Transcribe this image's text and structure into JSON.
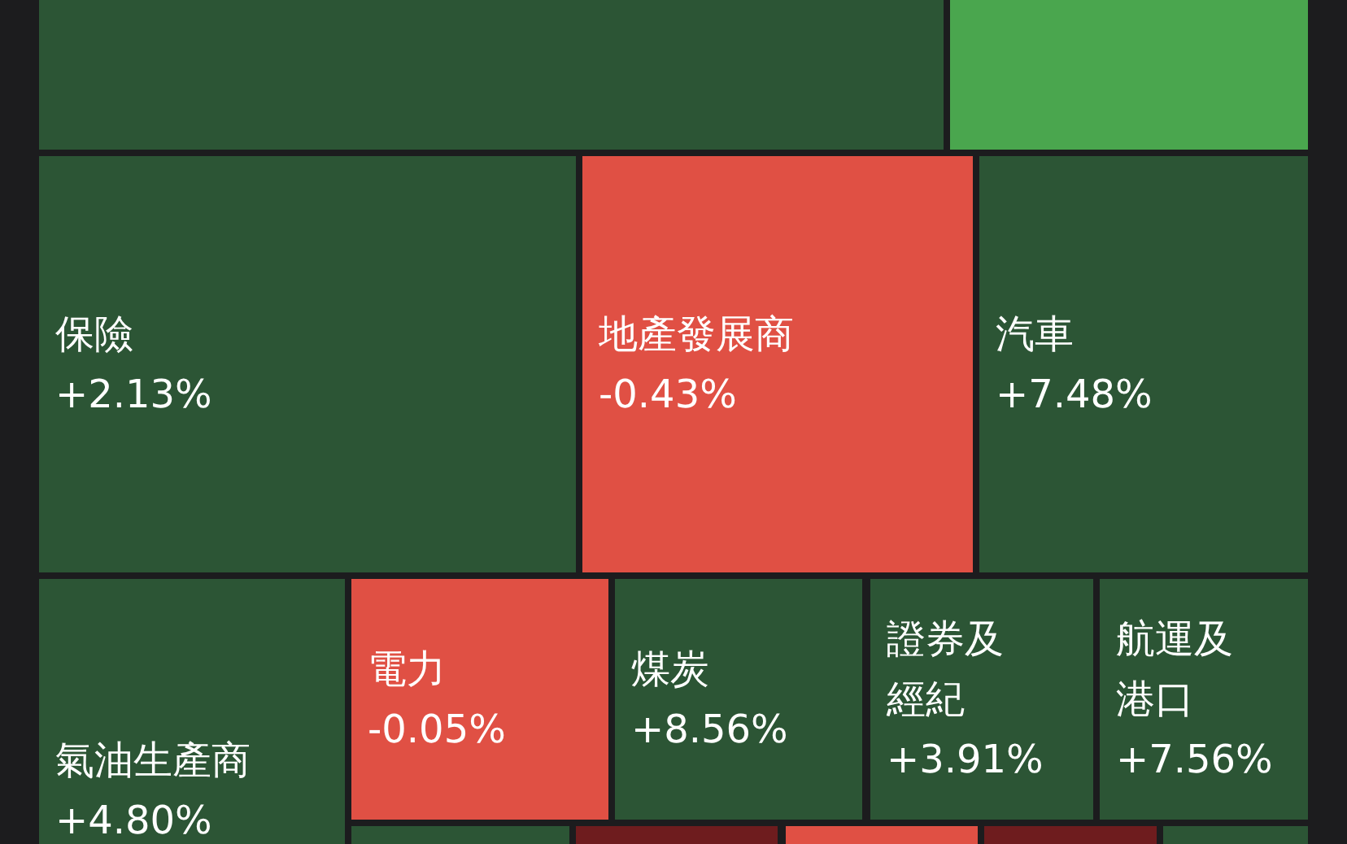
{
  "chart_data": {
    "type": "other",
    "categories": [
      "保險",
      "地產發展商",
      "汽車",
      "氣油生產商",
      "電力",
      "煤炭",
      "證券及經紀",
      "航運及港口"
    ],
    "values": [
      2.13,
      -0.43,
      7.48,
      4.8,
      -0.05,
      8.56,
      3.91,
      7.56
    ],
    "value_labels": [
      "+2.13%",
      "-0.43%",
      "+7.48%",
      "+4.80%",
      "-0.05%",
      "+8.56%",
      "+3.91%",
      "+7.56%"
    ],
    "colors": [
      "#2c5535",
      "#e05044",
      "#2c5535",
      "#2c5535",
      "#e05044",
      "#2c5535",
      "#2c5535",
      "#2c5535"
    ]
  }
}
